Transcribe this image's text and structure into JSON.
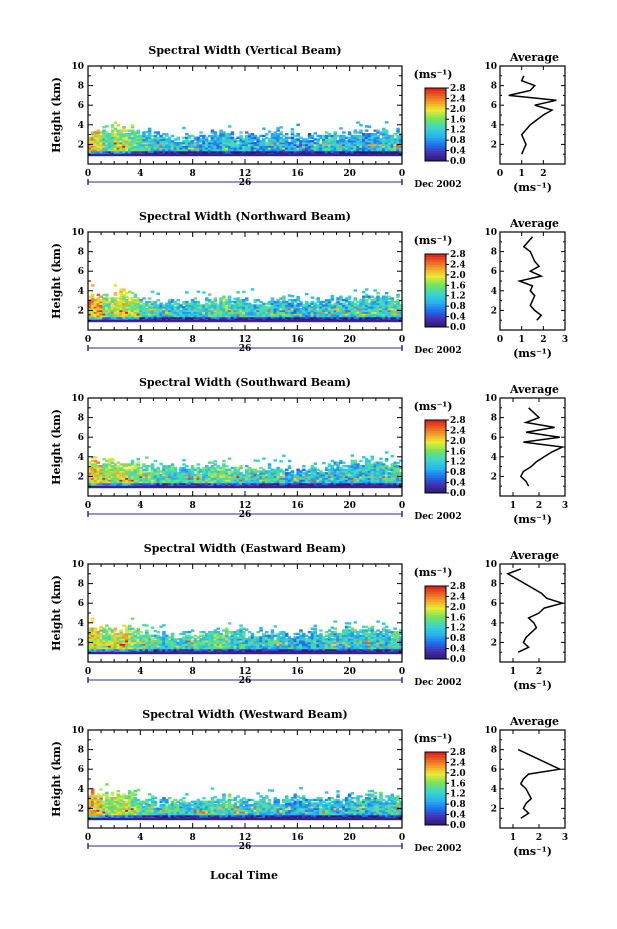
{
  "figure": {
    "xlabel": "Local Time",
    "x_ticks": [
      "0",
      "4",
      "8",
      "12",
      "16",
      "20",
      "0"
    ],
    "y_ticks": [
      "2",
      "4",
      "6",
      "8",
      "10"
    ],
    "ylabel": "Height (km)",
    "date_label": "Dec 2002",
    "day_label": "26",
    "colorbar_unit": "(ms⁻¹)",
    "colorbar_ticks": [
      "0.0",
      "0.4",
      "0.8",
      "1.2",
      "1.6",
      "2.0",
      "2.4",
      "2.8"
    ],
    "avg_title": "Average",
    "avg_unit": "(ms⁻¹)"
  },
  "chart_data": [
    {
      "type": "heatmap",
      "title": "Spectral Width (Vertical Beam)",
      "x_range_hours": [
        0,
        24
      ],
      "y_range_km": [
        0,
        10
      ],
      "colorbar_range": [
        0,
        2.8
      ],
      "base_height_km": 1.0,
      "top_height_km": [
        3.4,
        3.6,
        3.8,
        3.7,
        3.2,
        3.0,
        3.1,
        2.9,
        3.0,
        3.1,
        3.2,
        3.0,
        2.9,
        3.0,
        3.1,
        3.0,
        2.8,
        2.9,
        3.1,
        3.0,
        3.2,
        3.4,
        3.5,
        3.3
      ],
      "mean_width_ms": [
        2.0,
        1.4,
        1.8,
        1.5,
        1.2,
        1.0,
        1.1,
        1.0,
        1.0,
        1.0,
        1.1,
        1.0,
        0.9,
        1.0,
        1.0,
        0.9,
        0.8,
        0.9,
        1.1,
        1.0,
        1.0,
        0.9,
        1.0,
        1.1
      ],
      "average_profile": {
        "xlim": [
          0,
          3
        ],
        "x_ticks": [
          "0",
          "1",
          "2"
        ],
        "y": [
          1.0,
          1.5,
          2.0,
          2.5,
          3.0,
          3.5,
          4.0,
          4.5,
          5.0,
          5.5,
          6.0,
          6.5,
          7.0,
          7.5,
          8.0,
          8.5,
          9.0
        ],
        "x": [
          1.0,
          1.1,
          1.2,
          1.1,
          1.0,
          1.2,
          1.4,
          1.7,
          2.0,
          2.4,
          1.6,
          2.6,
          0.4,
          1.4,
          1.6,
          1.0,
          1.1
        ]
      }
    },
    {
      "type": "heatmap",
      "title": "Spectral Width (Northward Beam)",
      "x_range_hours": [
        0,
        24
      ],
      "y_range_km": [
        0,
        10
      ],
      "colorbar_range": [
        0,
        2.8
      ],
      "base_height_km": 1.0,
      "top_height_km": [
        3.6,
        3.4,
        3.8,
        3.5,
        3.0,
        2.9,
        3.1,
        2.8,
        2.9,
        3.0,
        3.2,
        3.0,
        2.9,
        3.0,
        3.1,
        3.0,
        3.1,
        3.0,
        3.2,
        3.1,
        3.3,
        3.4,
        3.5,
        3.3
      ],
      "mean_width_ms": [
        2.2,
        1.6,
        1.9,
        1.7,
        1.3,
        1.1,
        1.2,
        1.1,
        1.2,
        1.3,
        1.4,
        1.2,
        1.1,
        1.2,
        1.1,
        1.0,
        1.0,
        1.0,
        1.1,
        1.1,
        1.2,
        1.1,
        1.2,
        1.3
      ],
      "average_profile": {
        "xlim": [
          0,
          3
        ],
        "x_ticks": [
          "0",
          "1",
          "2",
          "3"
        ],
        "y": [
          1.0,
          1.5,
          2.0,
          2.5,
          3.0,
          3.5,
          4.0,
          4.5,
          5.0,
          5.5,
          6.0,
          6.5,
          7.0,
          8.0,
          8.5,
          9.0,
          9.5
        ],
        "x": [
          1.7,
          1.9,
          1.6,
          1.4,
          1.5,
          1.6,
          1.4,
          1.5,
          0.9,
          1.9,
          1.4,
          1.8,
          1.6,
          1.4,
          1.1,
          1.3,
          1.5
        ]
      }
    },
    {
      "type": "heatmap",
      "title": "Spectral Width (Southward Beam)",
      "x_range_hours": [
        0,
        24
      ],
      "y_range_km": [
        0,
        10
      ],
      "colorbar_range": [
        0,
        2.8
      ],
      "base_height_km": 1.0,
      "top_height_km": [
        3.6,
        3.5,
        3.4,
        3.6,
        3.0,
        2.8,
        3.0,
        2.9,
        3.0,
        3.2,
        3.1,
        3.0,
        2.8,
        2.9,
        3.0,
        2.9,
        2.8,
        2.9,
        3.0,
        3.1,
        3.4,
        3.6,
        3.5,
        3.2
      ],
      "mean_width_ms": [
        2.0,
        1.7,
        1.8,
        1.6,
        1.5,
        1.3,
        1.3,
        1.2,
        1.3,
        1.4,
        1.5,
        1.4,
        1.3,
        1.2,
        1.2,
        1.0,
        1.0,
        1.1,
        1.1,
        1.0,
        1.1,
        1.1,
        1.2,
        1.2
      ],
      "average_profile": {
        "xlim": [
          0.5,
          3
        ],
        "x_ticks": [
          "1",
          "2",
          "3"
        ],
        "y": [
          1.0,
          1.5,
          2.0,
          2.5,
          3.0,
          3.5,
          4.0,
          4.5,
          5.0,
          5.5,
          6.0,
          6.5,
          7.0,
          7.5,
          8.0,
          8.5,
          9.0
        ],
        "x": [
          1.6,
          1.5,
          1.3,
          1.4,
          1.7,
          1.9,
          2.2,
          2.5,
          2.9,
          1.4,
          2.8,
          1.5,
          2.6,
          1.5,
          2.0,
          1.8,
          1.6
        ]
      }
    },
    {
      "type": "heatmap",
      "title": "Spectral Width (Eastward Beam)",
      "x_range_hours": [
        0,
        24
      ],
      "y_range_km": [
        0,
        10
      ],
      "colorbar_range": [
        0,
        2.8
      ],
      "base_height_km": 1.0,
      "top_height_km": [
        3.8,
        3.4,
        3.6,
        3.5,
        3.0,
        2.9,
        3.0,
        2.8,
        3.0,
        3.2,
        3.3,
        3.1,
        3.0,
        3.0,
        3.1,
        2.9,
        3.0,
        3.1,
        3.2,
        3.3,
        3.5,
        3.4,
        3.3,
        3.1
      ],
      "mean_width_ms": [
        2.0,
        1.6,
        1.9,
        1.6,
        1.4,
        1.2,
        1.2,
        1.1,
        1.3,
        1.4,
        1.4,
        1.2,
        1.1,
        1.1,
        1.2,
        1.0,
        1.0,
        1.0,
        1.1,
        1.1,
        1.2,
        1.2,
        1.1,
        1.2
      ],
      "average_profile": {
        "xlim": [
          0.5,
          3
        ],
        "x_ticks": [
          "1",
          "2"
        ],
        "y": [
          1.0,
          1.5,
          2.0,
          2.5,
          3.0,
          3.5,
          4.0,
          4.5,
          5.0,
          5.5,
          6.0,
          6.5,
          7.0,
          9.0,
          9.5
        ],
        "x": [
          1.2,
          1.6,
          1.4,
          1.5,
          1.7,
          1.9,
          1.8,
          1.6,
          2.0,
          2.2,
          2.9,
          2.3,
          2.1,
          0.8,
          1.3
        ]
      }
    },
    {
      "type": "heatmap",
      "title": "Spectral Width (Westward Beam)",
      "x_range_hours": [
        0,
        24
      ],
      "y_range_km": [
        0,
        10
      ],
      "colorbar_range": [
        0,
        2.8
      ],
      "base_height_km": 1.0,
      "top_height_km": [
        3.7,
        3.5,
        3.6,
        3.4,
        3.0,
        2.9,
        3.0,
        2.8,
        3.0,
        3.1,
        3.2,
        3.0,
        2.9,
        3.0,
        3.1,
        3.0,
        2.9,
        3.0,
        3.1,
        3.2,
        3.4,
        3.5,
        3.4,
        3.2
      ],
      "mean_width_ms": [
        2.1,
        1.6,
        1.8,
        1.6,
        1.3,
        1.1,
        1.2,
        1.1,
        1.2,
        1.3,
        1.3,
        1.2,
        1.1,
        1.2,
        1.1,
        1.0,
        1.0,
        1.0,
        1.1,
        1.0,
        1.1,
        1.1,
        1.2,
        1.2
      ],
      "average_profile": {
        "xlim": [
          0.5,
          3
        ],
        "x_ticks": [
          "1",
          "2",
          "3"
        ],
        "y": [
          1.0,
          1.5,
          2.0,
          2.5,
          3.0,
          3.5,
          4.0,
          4.5,
          5.0,
          5.5,
          6.0,
          8.0
        ],
        "x": [
          1.3,
          1.6,
          1.4,
          1.5,
          1.7,
          1.6,
          1.5,
          1.3,
          1.4,
          1.6,
          2.8,
          1.2
        ]
      }
    }
  ]
}
